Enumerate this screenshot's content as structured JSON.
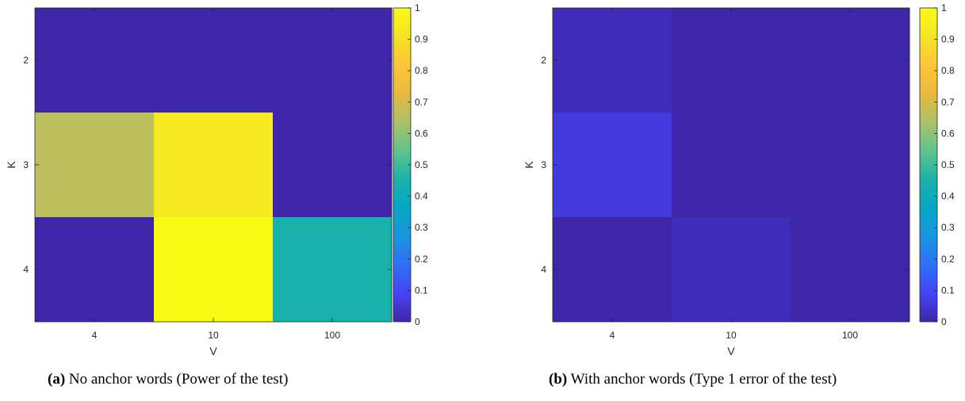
{
  "colorscale": {
    "name": "parula",
    "stops": [
      "#3e26a8",
      "#4743f8",
      "#2d71f6",
      "#1a94e0",
      "#06a7c6",
      "#1bb2a8",
      "#5ec48f",
      "#acc169",
      "#e9b940",
      "#fec637",
      "#f5e326",
      "#f9fb15"
    ]
  },
  "chart_data": [
    {
      "type": "heatmap",
      "xlabel": "V",
      "ylabel": "K",
      "x_categories": [
        "4",
        "10",
        "100"
      ],
      "y_categories": [
        "2",
        "3",
        "4"
      ],
      "values": [
        [
          0.0,
          0.0,
          0.0
        ],
        [
          0.66,
          0.94,
          0.0
        ],
        [
          0.0,
          1.0,
          0.45
        ]
      ],
      "colorbar": {
        "range": [
          0,
          1
        ],
        "ticks": [
          "0",
          "0.1",
          "0.2",
          "0.3",
          "0.4",
          "0.5",
          "0.6",
          "0.7",
          "0.8",
          "0.9",
          "1"
        ]
      },
      "caption_label": "(a)",
      "caption_text": "No anchor words (Power of the test)"
    },
    {
      "type": "heatmap",
      "xlabel": "V",
      "ylabel": "K",
      "x_categories": [
        "4",
        "10",
        "100"
      ],
      "y_categories": [
        "2",
        "3",
        "4"
      ],
      "values": [
        [
          0.02,
          0.0,
          0.0
        ],
        [
          0.06,
          0.0,
          0.0
        ],
        [
          0.0,
          0.02,
          0.0
        ]
      ],
      "colorbar": {
        "range": [
          0,
          1
        ],
        "ticks": [
          "0",
          "0.1",
          "0.2",
          "0.3",
          "0.4",
          "0.5",
          "0.6",
          "0.7",
          "0.8",
          "0.9",
          "1"
        ]
      },
      "caption_label": "(b)",
      "caption_text": "With anchor words (Type 1 error of the test)"
    }
  ]
}
